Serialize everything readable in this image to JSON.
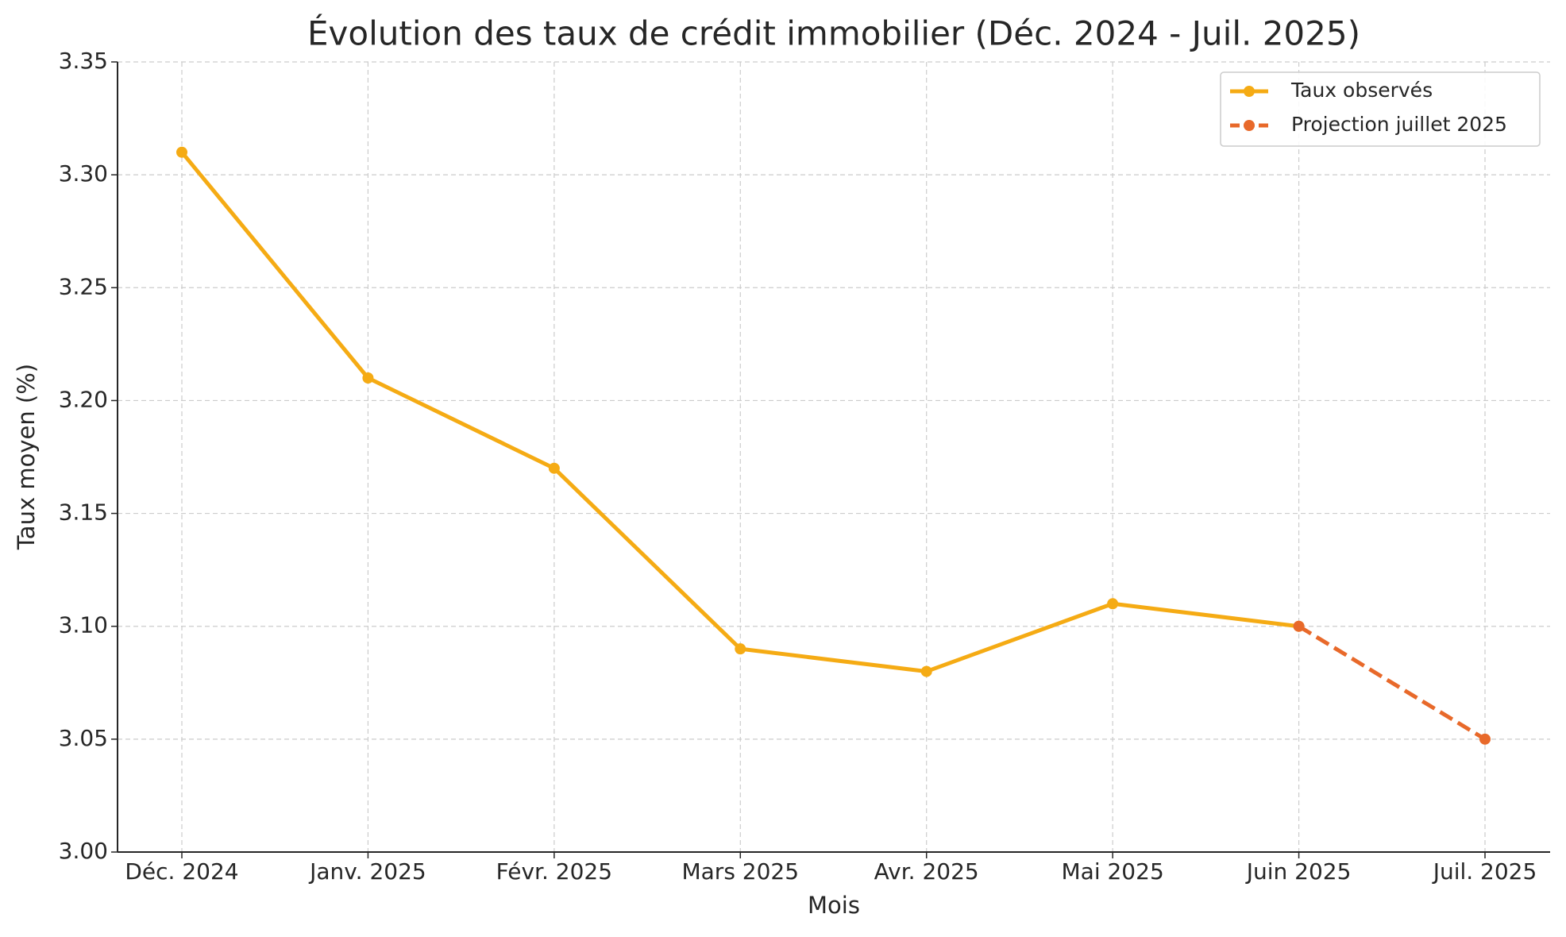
{
  "chart_data": {
    "type": "line",
    "title": "Évolution des taux de crédit immobilier (Déc. 2024 - Juil. 2025)",
    "x_label": "Mois",
    "y_label": "Taux moyen (%)",
    "categories": [
      "Déc. 2024",
      "Janv. 2025",
      "Févr. 2025",
      "Mars 2025",
      "Avr. 2025",
      "Mai 2025",
      "Juin 2025",
      "Juil. 2025"
    ],
    "series": [
      {
        "name": "Taux observés",
        "color": "#f5ab14",
        "linestyle": "solid",
        "values": [
          3.31,
          3.21,
          3.17,
          3.09,
          3.08,
          3.11,
          3.1,
          null
        ]
      },
      {
        "name": "Projection juillet 2025",
        "color": "#e8692a",
        "linestyle": "dashed",
        "values": [
          null,
          null,
          null,
          null,
          null,
          null,
          3.1,
          3.05
        ]
      }
    ],
    "ylim": [
      3.0,
      3.35
    ],
    "yticks": [
      {
        "value": 3.0,
        "label": "3.00"
      },
      {
        "value": 3.05,
        "label": "3.05"
      },
      {
        "value": 3.1,
        "label": "3.10"
      },
      {
        "value": 3.15,
        "label": "3.15"
      },
      {
        "value": 3.2,
        "label": "3.20"
      },
      {
        "value": 3.25,
        "label": "3.25"
      },
      {
        "value": 3.3,
        "label": "3.30"
      },
      {
        "value": 3.35,
        "label": "3.35"
      }
    ],
    "grid": true,
    "legend": "upper right"
  }
}
